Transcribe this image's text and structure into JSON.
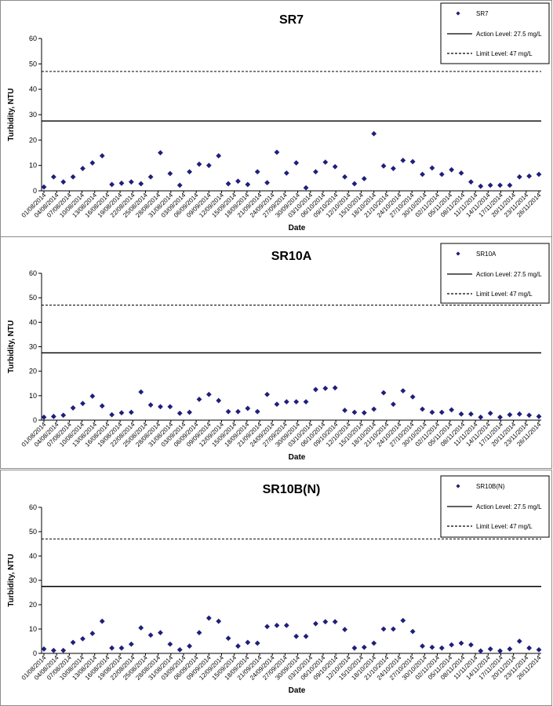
{
  "chart_data": [
    {
      "type": "scatter",
      "title": "SR7",
      "xlabel": "Date",
      "ylabel": "Turbidity, NTU",
      "ylim": [
        0,
        60
      ],
      "yticks": [
        0,
        10,
        20,
        30,
        40,
        50,
        60
      ],
      "legend_position": "top-right",
      "xtick_labels": [
        "01/08/2014",
        "04/08/2014",
        "07/08/2014",
        "10/08/2014",
        "13/08/2014",
        "16/08/2014",
        "19/08/2014",
        "22/08/2014",
        "25/08/2014",
        "28/08/2014",
        "31/08/2014",
        "03/09/2014",
        "06/09/2014",
        "09/09/2014",
        "12/09/2014",
        "15/09/2014",
        "18/09/2014",
        "21/09/2014",
        "24/09/2014",
        "27/09/2014",
        "30/09/2014",
        "03/10/2014",
        "06/10/2014",
        "09/10/2014",
        "12/10/2014",
        "15/10/2014",
        "18/10/2014",
        "21/10/2014",
        "24/10/2014",
        "27/10/2014",
        "30/10/2014",
        "02/11/2014",
        "05/11/2014",
        "08/11/2014",
        "11/11/2014",
        "14/11/2014",
        "17/11/2014",
        "20/11/2014",
        "23/11/2014",
        "26/11/2014"
      ],
      "series": [
        {
          "name": "SR7",
          "values": [
            1.5,
            5.5,
            3.5,
            5.5,
            8.8,
            11,
            13.8,
            2.5,
            3.0,
            3.5,
            2.8,
            5.5,
            15,
            6.8,
            2.2,
            7.5,
            10.5,
            10,
            13.8,
            2.8,
            3.8,
            2.5,
            7.5,
            3.2,
            15.2,
            7,
            11,
            1.2,
            7.5,
            11.3,
            9.5,
            5.5,
            2.8,
            4.8,
            22.5,
            9.8,
            8.8,
            12,
            11.5,
            6.5,
            9,
            6.5,
            8.3,
            7,
            3.5,
            1.8,
            2.2,
            2.2,
            2.2,
            5.5,
            5.8,
            6.5
          ]
        }
      ],
      "reference_lines": [
        {
          "name": "Action Level: 27.5 mg/L",
          "value": 27.5,
          "style": "solid"
        },
        {
          "name": "Limit Level: 47 mg/L",
          "value": 47,
          "style": "dashed"
        }
      ]
    },
    {
      "type": "scatter",
      "title": "SR10A",
      "xlabel": "Date",
      "ylabel": "Turbidity, NTU",
      "ylim": [
        0,
        60
      ],
      "yticks": [
        0,
        10,
        20,
        30,
        40,
        50,
        60
      ],
      "legend_position": "top-right",
      "xtick_labels": [
        "01/08/2014",
        "04/08/2014",
        "07/08/2014",
        "10/08/2014",
        "13/08/2014",
        "16/08/2014",
        "19/08/2014",
        "22/08/2014",
        "25/08/2014",
        "28/08/2014",
        "31/08/2014",
        "03/09/2014",
        "06/09/2014",
        "09/09/2014",
        "12/09/2014",
        "15/09/2014",
        "18/09/2014",
        "21/09/2014",
        "24/09/2014",
        "27/09/2014",
        "30/09/2014",
        "03/10/2014",
        "06/10/2014",
        "09/10/2014",
        "12/10/2014",
        "15/10/2014",
        "18/10/2014",
        "21/10/2014",
        "24/10/2014",
        "27/10/2014",
        "30/10/2014",
        "02/11/2014",
        "05/11/2014",
        "08/11/2014",
        "11/11/2014",
        "14/11/2014",
        "17/11/2014",
        "20/11/2014",
        "23/11/2014",
        "26/11/2014"
      ],
      "series": [
        {
          "name": "SR10A",
          "values": [
            1.2,
            1.5,
            2,
            5,
            6.8,
            9.8,
            5.8,
            2.2,
            3.0,
            3.2,
            11.5,
            6.2,
            5.5,
            5.5,
            2.8,
            3.2,
            8.5,
            10.5,
            8,
            3.5,
            3.5,
            4.8,
            3.5,
            10.5,
            6.5,
            7.5,
            7.5,
            7.5,
            12.5,
            13,
            13.2,
            4,
            3.2,
            3,
            4.5,
            11.2,
            6.5,
            12,
            9.5,
            4.5,
            3.2,
            3.2,
            4.2,
            2.5,
            2.5,
            1.2,
            2.8,
            1.2,
            2.2,
            2.5,
            2,
            1.5
          ]
        }
      ],
      "reference_lines": [
        {
          "name": "Action Level: 27.5 mg/L",
          "value": 27.5,
          "style": "solid"
        },
        {
          "name": "Limit Level: 47 mg/L",
          "value": 47,
          "style": "dashed"
        }
      ]
    },
    {
      "type": "scatter",
      "title": "SR10B(N)",
      "xlabel": "Date",
      "ylabel": "Turbidity, NTU",
      "ylim": [
        0,
        60
      ],
      "yticks": [
        0,
        10,
        20,
        30,
        40,
        50,
        60
      ],
      "legend_position": "top-right",
      "xtick_labels": [
        "01/08/2014",
        "04/08/2014",
        "07/08/2014",
        "10/08/2014",
        "13/08/2014",
        "16/08/2014",
        "19/08/2014",
        "22/08/2014",
        "25/08/2014",
        "28/08/2014",
        "31/08/2014",
        "03/09/2014",
        "06/09/2014",
        "09/09/2014",
        "12/09/2014",
        "15/09/2014",
        "18/09/2014",
        "21/09/2014",
        "24/09/2014",
        "27/09/2014",
        "30/09/2014",
        "03/10/2014",
        "06/10/2014",
        "09/10/2014",
        "12/10/2014",
        "15/10/2014",
        "18/10/2014",
        "21/10/2014",
        "24/10/2014",
        "27/10/2014",
        "30/10/2014",
        "02/11/2014",
        "05/11/2014",
        "08/11/2014",
        "11/11/2014",
        "14/11/2014",
        "17/11/2014",
        "20/11/2014",
        "23/11/2014",
        "26/11/2014"
      ],
      "series": [
        {
          "name": "SR10B(N)",
          "values": [
            1.8,
            1.2,
            1.2,
            4.5,
            6,
            8.2,
            13.2,
            2.2,
            2.2,
            3.8,
            10.5,
            7.5,
            8.5,
            3.8,
            1.5,
            3,
            8.5,
            14.5,
            13.2,
            6.2,
            3,
            4.5,
            4.2,
            11,
            11.5,
            11.5,
            7,
            7,
            12.2,
            13,
            13,
            9.8,
            2.2,
            2.5,
            4.2,
            10,
            10,
            13.5,
            9,
            3,
            2.5,
            2.2,
            3.5,
            4.2,
            3.5,
            1,
            1.8,
            1,
            1.8,
            5,
            2.2,
            1.5
          ]
        }
      ],
      "reference_lines": [
        {
          "name": "Action Level: 27.5 mg/L",
          "value": 27.5,
          "style": "solid"
        },
        {
          "name": "Limit Level: 47 mg/L",
          "value": 47,
          "style": "dashed"
        }
      ]
    }
  ],
  "colors": {
    "marker": "#1f1f7a",
    "line": "#000000"
  }
}
